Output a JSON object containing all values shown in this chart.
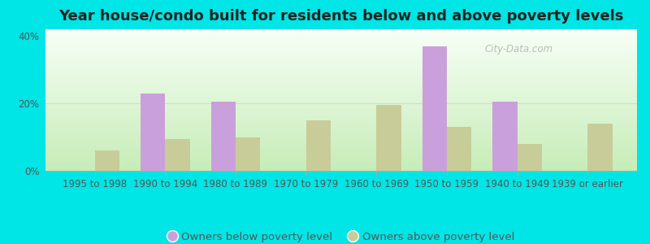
{
  "title": "Year house/condo built for residents below and above poverty levels",
  "categories": [
    "1995 to 1998",
    "1990 to 1994",
    "1980 to 1989",
    "1970 to 1979",
    "1960 to 1969",
    "1950 to 1959",
    "1940 to 1949",
    "1939 or earlier"
  ],
  "below_poverty": [
    0,
    23,
    20.5,
    0,
    0,
    37,
    20.5,
    0
  ],
  "above_poverty": [
    6,
    9.5,
    10,
    15,
    19.5,
    13,
    8,
    14
  ],
  "color_below": "#c9a0dc",
  "color_above": "#c8cc99",
  "outer_background": "#00e5e5",
  "bg_top_color": "#f0faf0",
  "bg_bottom_color": "#c8e8b8",
  "ylim": [
    0,
    42
  ],
  "yticks": [
    0,
    20,
    40
  ],
  "ytick_labels": [
    "0%",
    "20%",
    "40%"
  ],
  "bar_width": 0.35,
  "legend_below": "Owners below poverty level",
  "legend_above": "Owners above poverty level",
  "title_fontsize": 13,
  "axis_label_fontsize": 8.5,
  "legend_fontsize": 9.5
}
